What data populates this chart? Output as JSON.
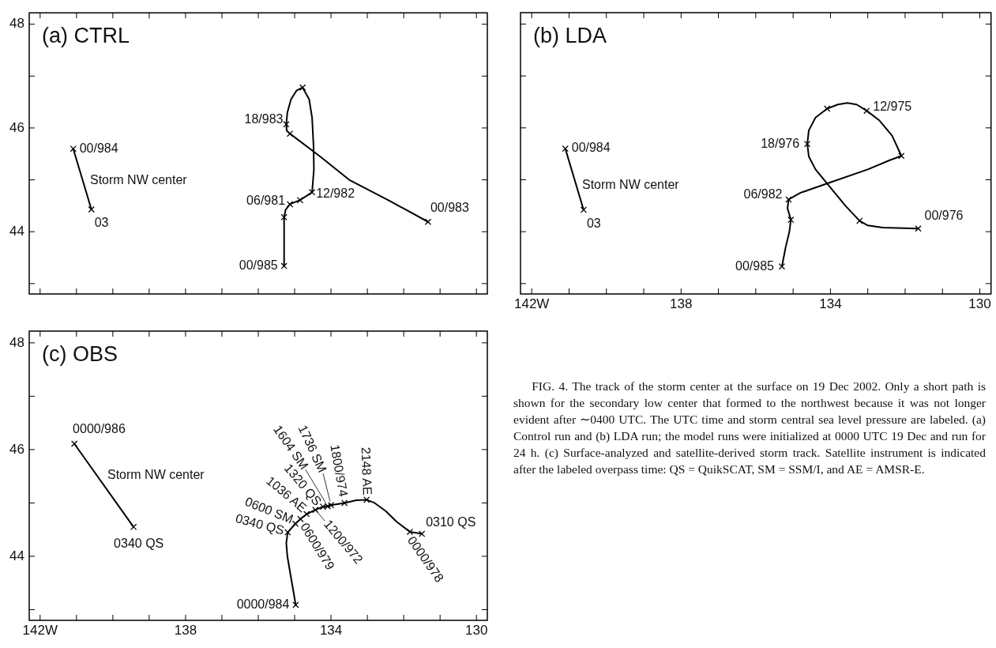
{
  "chart_data": [
    {
      "type": "line",
      "title": "(a) CTRL",
      "xlim": [
        142.3,
        129.7
      ],
      "ylim": [
        42.8,
        48.22
      ],
      "xticks": [
        142,
        141,
        140,
        139,
        138,
        137,
        136,
        135,
        134,
        133,
        132,
        131,
        130
      ],
      "yticks": [
        {
          "value": 43,
          "label": null
        },
        44,
        {
          "value": 45,
          "label": null
        },
        46,
        {
          "value": 47,
          "label": null
        },
        48
      ],
      "tick_labels": "y",
      "series": [
        {
          "type": "line",
          "color": "#000000",
          "marker": "none",
          "x": [
            141.09,
            140.59
          ],
          "values": [
            45.6,
            44.43
          ]
        },
        {
          "type": "line",
          "color": "#000000",
          "marker": "none",
          "x": [
            135.29,
            135.29,
            135.25,
            135.13,
            134.85,
            134.52,
            134.47,
            134.48,
            134.52,
            134.6,
            134.78,
            134.95,
            135.1,
            135.2,
            135.23,
            135.22,
            135.13,
            134.3,
            133.5,
            132.4,
            131.33
          ],
          "values": [
            43.34,
            44.28,
            44.42,
            44.53,
            44.61,
            44.76,
            45.2,
            45.65,
            46.2,
            46.55,
            46.78,
            46.72,
            46.55,
            46.3,
            46.07,
            45.95,
            45.89,
            45.45,
            45.0,
            44.6,
            44.19
          ]
        },
        {
          "type": "scatter",
          "color": "#000000",
          "marker": "cross",
          "x": [
            141.09,
            140.59,
            135.29,
            135.29,
            135.13,
            134.85,
            134.52,
            134.78,
            135.23,
            135.13,
            131.33
          ],
          "values": [
            45.6,
            44.43,
            43.34,
            44.28,
            44.53,
            44.61,
            44.76,
            46.78,
            46.07,
            45.89,
            44.19
          ]
        }
      ],
      "annotations": [
        {
          "text": "00/984",
          "x": 141.09,
          "y": 45.6
        },
        {
          "text": "03",
          "x": 140.59,
          "y": 44.43
        },
        "Storm NW center",
        {
          "text": "18/983",
          "x": 135.23,
          "y": 46.07
        },
        {
          "text": "06/981",
          "x": 135.13,
          "y": 44.53
        },
        {
          "text": "12/982",
          "x": 134.52,
          "y": 44.76
        },
        {
          "text": "00/985",
          "x": 135.29,
          "y": 43.34
        },
        {
          "text": "00/983",
          "x": 131.33,
          "y": 44.19
        }
      ]
    },
    {
      "type": "line",
      "title": "(b) LDA",
      "xlim": [
        142.3,
        129.7
      ],
      "ylim": [
        42.8,
        48.22
      ],
      "xticks": [
        {
          "value": 142,
          "label": "142W"
        },
        {
          "value": 141,
          "label": null
        },
        {
          "value": 140,
          "label": null
        },
        {
          "value": 139,
          "label": null
        },
        138,
        {
          "value": 137,
          "label": null
        },
        {
          "value": 136,
          "label": null
        },
        {
          "value": 135,
          "label": null
        },
        134,
        {
          "value": 133,
          "label": null
        },
        {
          "value": 132,
          "label": null
        },
        {
          "value": 131,
          "label": null
        },
        130
      ],
      "yticks": [
        43,
        44,
        45,
        46,
        47,
        48
      ],
      "tick_labels": "x",
      "series": [
        {
          "type": "line",
          "color": "#000000",
          "marker": "none",
          "x": [
            141.1,
            140.61
          ],
          "values": [
            45.6,
            44.42
          ]
        },
        {
          "type": "line",
          "color": "#000000",
          "marker": "none",
          "x": [
            135.3,
            135.2,
            135.1,
            135.06,
            135.15,
            135.12,
            134.8,
            134.0,
            133.0,
            132.4,
            132.1,
            132.35,
            132.7,
            133.03,
            133.3,
            133.55,
            133.8,
            134.09,
            134.4,
            134.58,
            134.62,
            134.58,
            134.4,
            134.0,
            133.6,
            133.22,
            133.0,
            132.6,
            131.65
          ],
          "values": [
            43.33,
            43.7,
            44.0,
            44.23,
            44.45,
            44.62,
            44.75,
            44.95,
            45.2,
            45.38,
            45.46,
            45.85,
            46.15,
            46.33,
            46.45,
            46.48,
            46.45,
            46.37,
            46.2,
            45.95,
            45.69,
            45.45,
            45.2,
            44.85,
            44.5,
            44.21,
            44.12,
            44.08,
            44.06
          ]
        },
        {
          "type": "scatter",
          "color": "#000000",
          "marker": "cross",
          "x": [
            141.1,
            140.61,
            135.3,
            135.06,
            135.12,
            132.1,
            133.03,
            134.09,
            134.62,
            133.22,
            131.65
          ],
          "values": [
            45.6,
            44.42,
            43.33,
            44.23,
            44.62,
            45.46,
            46.33,
            46.37,
            45.69,
            44.21,
            44.06
          ]
        }
      ],
      "annotations": [
        {
          "text": "00/984",
          "x": 141.1,
          "y": 45.6
        },
        {
          "text": "03",
          "x": 140.61,
          "y": 44.42
        },
        "Storm NW center",
        {
          "text": "12/975",
          "x": 133.03,
          "y": 46.33
        },
        {
          "text": "18/976",
          "x": 134.62,
          "y": 45.69
        },
        {
          "text": "06/982",
          "x": 135.12,
          "y": 44.62
        },
        {
          "text": "00/985",
          "x": 135.3,
          "y": 43.33
        },
        {
          "text": "00/976",
          "x": 131.65,
          "y": 44.06
        }
      ]
    },
    {
      "type": "line",
      "title": "(c) OBS",
      "xlim": [
        142.3,
        129.7
      ],
      "ylim": [
        42.8,
        48.22
      ],
      "xticks": [
        {
          "value": 142,
          "label": "142W"
        },
        {
          "value": 141,
          "label": null
        },
        {
          "value": 140,
          "label": null
        },
        {
          "value": 139,
          "label": null
        },
        138,
        {
          "value": 137,
          "label": null
        },
        {
          "value": 136,
          "label": null
        },
        {
          "value": 135,
          "label": null
        },
        134,
        {
          "value": 133,
          "label": null
        },
        {
          "value": 132,
          "label": null
        },
        {
          "value": 131,
          "label": null
        },
        130
      ],
      "yticks": [
        {
          "value": 43,
          "label": null
        },
        44,
        {
          "value": 45,
          "label": null
        },
        46,
        {
          "value": 47,
          "label": null
        },
        48
      ],
      "series": [
        {
          "type": "line",
          "color": "#000000",
          "marker": "none",
          "x": [
            141.06,
            139.43
          ],
          "values": [
            46.11,
            44.55
          ]
        },
        {
          "type": "line",
          "color": "#000000",
          "marker": "none",
          "x": [
            134.97,
            135.1,
            135.2,
            135.23,
            135.19,
            134.98,
            134.84,
            134.67,
            134.43,
            134.22,
            134.09,
            134.0,
            133.63,
            133.3,
            133.02,
            132.8,
            132.5,
            132.2,
            131.83,
            131.5
          ],
          "values": [
            43.09,
            43.6,
            44.0,
            44.25,
            44.45,
            44.61,
            44.7,
            44.79,
            44.87,
            44.93,
            44.94,
            44.96,
            45.0,
            45.05,
            45.06,
            45.0,
            44.85,
            44.65,
            44.46,
            44.42
          ]
        },
        {
          "type": "scatter",
          "color": "#000000",
          "marker": "cross",
          "x": [
            141.06,
            139.43,
            134.97,
            135.19,
            134.98,
            134.84,
            134.67,
            134.43,
            134.22,
            134.09,
            134.0,
            133.63,
            133.02,
            131.83,
            131.5
          ],
          "values": [
            46.11,
            44.55,
            43.09,
            44.45,
            44.61,
            44.7,
            44.79,
            44.87,
            44.93,
            44.94,
            44.96,
            45.0,
            45.06,
            44.46,
            44.42
          ]
        }
      ],
      "annotations": [
        {
          "text": "0000/986",
          "x": 141.06,
          "y": 46.11
        },
        {
          "text": "0340 QS",
          "x": 139.43,
          "y": 44.55
        },
        "Storm NW center",
        {
          "text": "0000/984",
          "x": 134.97,
          "y": 43.09
        },
        {
          "text": "0340 QS",
          "x": 135.19,
          "y": 44.45
        },
        {
          "text": "0600 SM",
          "x": 134.98,
          "y": 44.61
        },
        {
          "text": "0600/979",
          "x": 134.84,
          "y": 44.7
        },
        {
          "text": "1036 AE",
          "x": 134.67,
          "y": 44.79
        },
        {
          "text": "1200/972",
          "x": 134.43,
          "y": 44.87
        },
        {
          "text": "1320 QS",
          "x": 134.22,
          "y": 44.93
        },
        {
          "text": "1604 SM",
          "x": 134.09,
          "y": 44.94
        },
        {
          "text": "1736 SM",
          "x": 134.0,
          "y": 44.96
        },
        {
          "text": "1800/974",
          "x": 133.63,
          "y": 45.0
        },
        {
          "text": "2148 AE",
          "x": 133.02,
          "y": 45.06
        },
        {
          "text": "0000/978",
          "x": 131.83,
          "y": 44.46
        },
        {
          "text": "0310 QS",
          "x": 131.5,
          "y": 44.42
        }
      ]
    },
    {
      "type": "other",
      "annotations": [
        "FIG. 4. The track of the storm center at the surface on 19 Dec 2002. Only a short path is shown for the secondary low center that formed to the northwest because it was not longer evident after ∼0400 UTC. The UTC time and storm central sea level pressure are labeled. (a) Control run and (b) LDA run; the model runs were initialized at 0000 UTC 19 Dec and run for 24 h. (c) Surface-analyzed and satellite-derived storm track. Satellite instrument is indicated after the labeled overpass time: QS = QuikSCAT, SM = SSM/I, and AE = AMSR-E."
      ]
    }
  ]
}
